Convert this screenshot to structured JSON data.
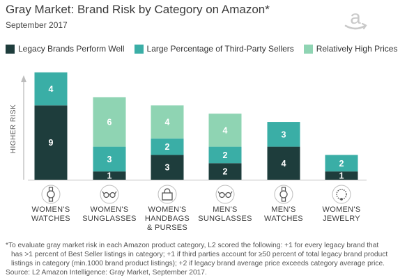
{
  "header": {
    "title": "Gray Market: Brand Risk by Category on Amazon*",
    "subtitle": "September 2017",
    "logo_icon": "amazon-logo-icon"
  },
  "colors": {
    "legacy": "#1e3d3c",
    "third_party": "#3aaea6",
    "high_prices": "#8fd4b3"
  },
  "chart_data": {
    "type": "bar",
    "stacked": true,
    "title": "Gray Market: Brand Risk by Category on Amazon*",
    "ylabel": "HIGHER RISK",
    "xlabel": "",
    "categories": [
      "WOMEN'S WATCHES",
      "WOMEN'S SUNGLASSES",
      "WOMEN'S HANDBAGS & PURSES",
      "MEN'S SUNGLASSES",
      "MEN'S WATCHES",
      "WOMEN'S JEWELRY"
    ],
    "category_icons": [
      "watch-icon",
      "sunglasses-icon",
      "handbag-icon",
      "sunglasses-icon",
      "watch-icon",
      "necklace-icon"
    ],
    "series": [
      {
        "name": "Legacy Brands Perform Well",
        "values": [
          9,
          1,
          3,
          2,
          4,
          1
        ]
      },
      {
        "name": "Large Percentage of Third-Party Sellers",
        "values": [
          4,
          3,
          2,
          2,
          3,
          2
        ]
      },
      {
        "name": "Relatively High Prices",
        "values": [
          0,
          6,
          4,
          4,
          0,
          0
        ]
      }
    ],
    "ylim": [
      0,
      13
    ],
    "legend_position": "top",
    "grid": false
  },
  "footnote": {
    "lines": [
      "*To evaluate gray market risk in each Amazon product category, L2 scored the following: +1 for every legacy brand that",
      "has >1 percent of Best Seller listings in category; +1 if third parties account for ≥50 percent of total legacy brand product",
      "listings in category (min.1000 brand product listings); +2 if legacy brand average price exceeds category average price."
    ],
    "source": "Source: L2 Amazon Intelligence: Gray Market, September 2017."
  }
}
